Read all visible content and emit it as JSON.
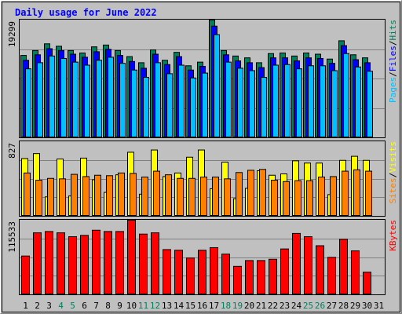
{
  "chart_data": [
    {
      "type": "bar",
      "panel": "hits-files-pages",
      "title": "Daily usage for June 2022",
      "ylabel_parts": [
        "Pages",
        "Files",
        "Hits"
      ],
      "ytick_label": "19299",
      "ylim": [
        0,
        19299
      ],
      "grid": true,
      "categories": [
        "1",
        "2",
        "3",
        "4",
        "5",
        "6",
        "7",
        "8",
        "9",
        "10",
        "11",
        "12",
        "13",
        "14",
        "15",
        "16",
        "17",
        "18",
        "19",
        "20",
        "21",
        "22",
        "23",
        "24",
        "25",
        "26",
        "27",
        "28",
        "29",
        "30",
        "31"
      ],
      "series": [
        {
          "name": "Hits",
          "values": [
            13500,
            14300,
            15400,
            15000,
            14300,
            13900,
            14900,
            15200,
            14300,
            13300,
            12300,
            14400,
            12700,
            14000,
            11800,
            12400,
            19299,
            14300,
            13400,
            13100,
            12300,
            13800,
            13900,
            13400,
            13900,
            13700,
            12900,
            15900,
            13600,
            13100,
            0
          ]
        },
        {
          "name": "Files",
          "values": [
            12700,
            13600,
            14600,
            14300,
            13700,
            13200,
            14100,
            14500,
            13500,
            12500,
            11400,
            13700,
            12000,
            13300,
            11100,
            11700,
            18300,
            13600,
            12600,
            12300,
            11500,
            13100,
            13100,
            12600,
            13100,
            13000,
            12200,
            15100,
            12800,
            12300,
            0
          ]
        },
        {
          "name": "Pages",
          "values": [
            11300,
            12300,
            13400,
            13000,
            12400,
            11900,
            12700,
            13200,
            12200,
            11100,
            9900,
            12300,
            10500,
            11900,
            9800,
            10600,
            16900,
            12400,
            11400,
            11000,
            9900,
            11900,
            12000,
            11300,
            11800,
            11800,
            11000,
            13800,
            11600,
            10900,
            0
          ]
        }
      ]
    },
    {
      "type": "bar",
      "panel": "visits-sites",
      "ylabel_parts": [
        "Sites",
        "Visits"
      ],
      "ytick_label": "827",
      "ylim": [
        0,
        827
      ],
      "grid": true,
      "series": [
        {
          "name": "Visits",
          "values": [
            640,
            695,
            215,
            635,
            225,
            645,
            405,
            265,
            460,
            710,
            245,
            735,
            440,
            480,
            655,
            735,
            305,
            600,
            195,
            310,
            505,
            455,
            470,
            615,
            590,
            590,
            240,
            620,
            665,
            620,
            0
          ]
        },
        {
          "name": "Sites",
          "values": [
            480,
            400,
            420,
            415,
            465,
            440,
            455,
            450,
            480,
            475,
            435,
            500,
            460,
            420,
            420,
            435,
            435,
            415,
            485,
            510,
            520,
            400,
            385,
            395,
            395,
            435,
            440,
            500,
            515,
            500,
            0
          ]
        }
      ]
    },
    {
      "type": "bar",
      "panel": "kbytes",
      "ylabel_parts": [
        "KBytes"
      ],
      "ytick_label": "115533",
      "ylim": [
        0,
        115533
      ],
      "grid": true,
      "series": [
        {
          "name": "KBytes",
          "values": [
            60000,
            96000,
            98000,
            96000,
            90000,
            92000,
            100000,
            98000,
            98000,
            115533,
            94000,
            96000,
            70000,
            69000,
            57000,
            69000,
            73000,
            63000,
            44000,
            53000,
            53000,
            55000,
            71000,
            95000,
            90000,
            76000,
            58000,
            86000,
            68000,
            35000,
            0
          ]
        }
      ]
    }
  ],
  "colors": {
    "background": "#C0C0C0",
    "hits": "#00805C",
    "files": "#0000FF",
    "pages": "#00C0FF",
    "visits": "#FFFF00",
    "sites": "#FF8000",
    "kbytes": "#FF0000",
    "title": "#0000FF",
    "weekend_day": "#00805C",
    "weekday": "#000000"
  },
  "weekend_days": [
    "4",
    "5",
    "11",
    "12",
    "18",
    "19",
    "25",
    "26"
  ]
}
